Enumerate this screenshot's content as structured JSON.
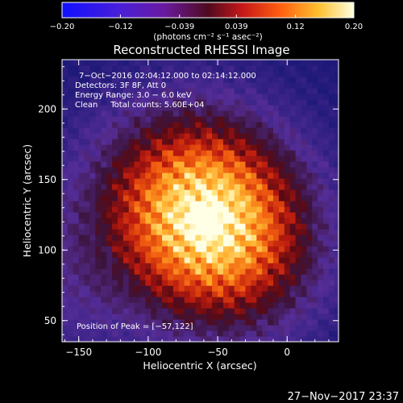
{
  "chart_data": {
    "type": "heatmap",
    "title": "Reconstructed RHESSI Image",
    "xlabel": "Heliocentric X (arcsec)",
    "ylabel": "Heliocentric Y (arcsec)",
    "xlim": [
      -162,
      37
    ],
    "ylim": [
      35,
      235
    ],
    "x_ticks": [
      -150,
      -100,
      -50,
      0
    ],
    "x_tick_labels": [
      "−150",
      "−100",
      "−50",
      "0"
    ],
    "y_ticks": [
      50,
      100,
      150,
      200
    ],
    "y_tick_labels": [
      "50",
      "100",
      "150",
      "200"
    ],
    "peak": [
      -57,
      122
    ],
    "colorbar": {
      "range": [
        -0.2,
        0.2
      ],
      "ticks": [
        -0.2,
        -0.12,
        -0.039,
        0.039,
        0.12,
        0.2
      ],
      "tick_labels": [
        "−0.20",
        "−0.12",
        "−0.039",
        "0.039",
        "0.12",
        "0.20"
      ],
      "label": "(photons cm⁻² s⁻¹ asec⁻²)"
    },
    "annotations": [
      "7−Oct−2016 02:04:12.000 to 02:14:12.000",
      "Detectors: 3F 8F, Att 0",
      "Energy Range: 3.0 − 6.0 keV",
      "Clean     Total counts: 5.60E+04"
    ],
    "peak_label": "Position of Peak = [−57,122]",
    "grid": false
  },
  "timestamp": "27−Nov−2017 23:37"
}
